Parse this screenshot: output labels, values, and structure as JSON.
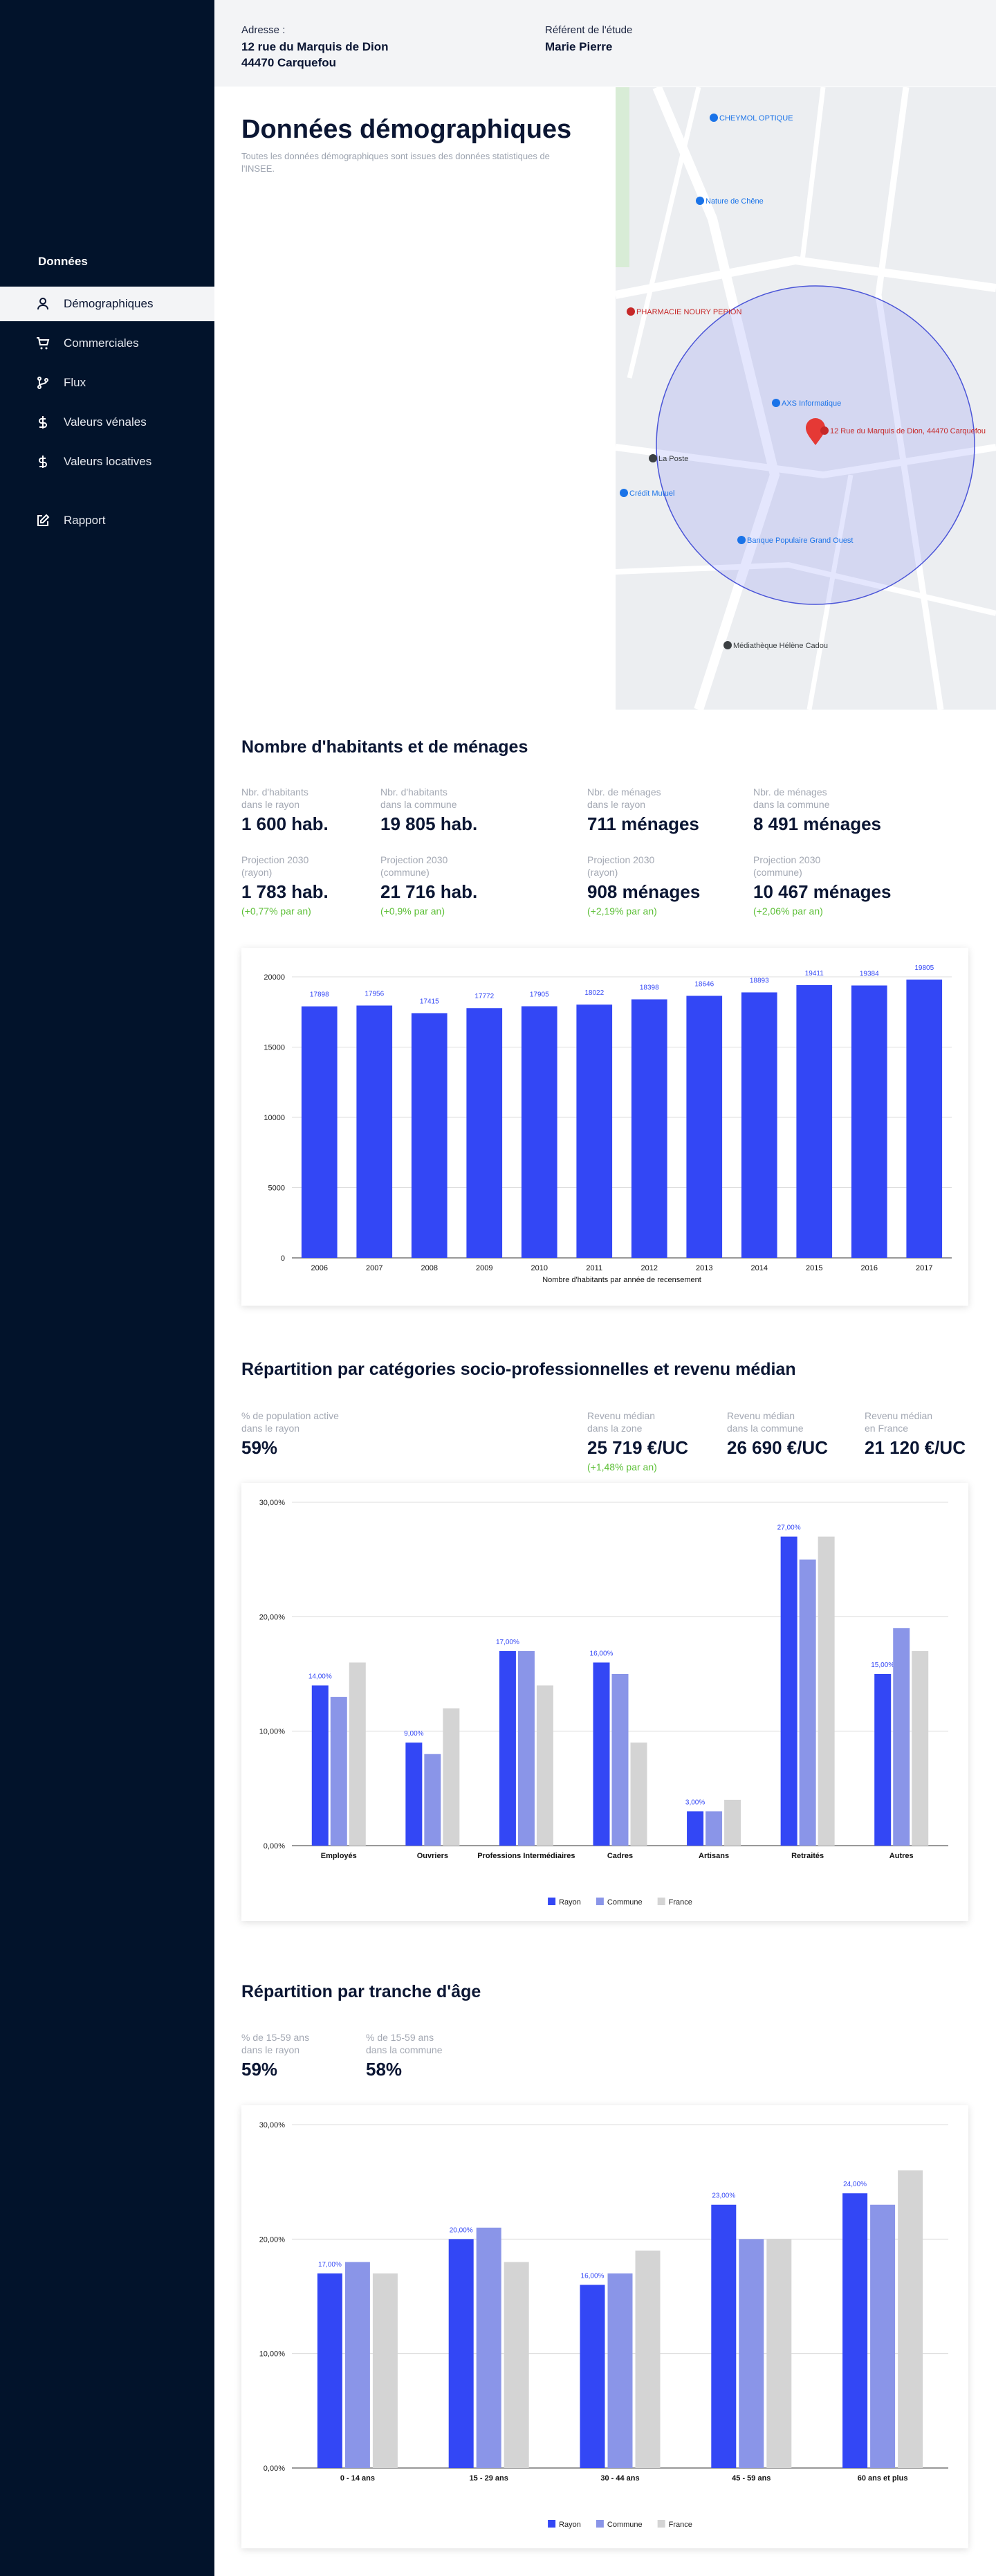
{
  "sidebar": {
    "heading": "Données",
    "items": [
      "Démographiques",
      "Commerciales",
      "Flux",
      "Valeurs vénales",
      "Valeurs locatives",
      "Rapport"
    ]
  },
  "header": {
    "address_label": "Adresse :",
    "address_lines": [
      "12 rue du Marquis de Dion",
      "44470 Carquefou"
    ],
    "referent_label": "Référent de l'étude",
    "referent": "Marie Pierre"
  },
  "page": {
    "title": "Données démographiques",
    "subtitle": "Toutes les données démographiques sont issues des données statistiques de l'INSEE."
  },
  "map": {
    "labels": [
      "CHEYMOL OPTIQUE",
      "Nature de Chêne",
      "PHARMACIE NOURY PEPION",
      "AXS Informatique",
      "12 Rue du Marquis de Dion, 44470 Carquefou",
      "La Poste",
      "Crédit Mutuel",
      "Banque Populaire Grand Ouest",
      "Médiathèque Hélène Cadou"
    ]
  },
  "sections": [
    {
      "title": "Nombre d'habitants et de ménages",
      "stats": [
        {
          "label_lines": [
            "Nbr. d'habitants",
            "dans le rayon"
          ],
          "value": "1 600 hab."
        },
        {
          "label_lines": [
            "Nbr. d'habitants",
            "dans la commune"
          ],
          "value": "19 805 hab."
        },
        {
          "label_lines": [
            "Nbr. de ménages",
            "dans le rayon"
          ],
          "value": "711 ménages"
        },
        {
          "label_lines": [
            "Nbr. de ménages",
            "dans la commune"
          ],
          "value": "8 491 ménages"
        },
        {
          "label_lines": [
            "Projection 2030",
            "(rayon)"
          ],
          "value": "1 783 hab.",
          "growth": "(+0,77% par an)"
        },
        {
          "label_lines": [
            "Projection 2030",
            "(commune)"
          ],
          "value": "21 716 hab.",
          "growth": "(+0,9% par an)"
        },
        {
          "label_lines": [
            "Projection 2030",
            "(rayon)"
          ],
          "value": "908 ménages",
          "growth": "(+2,19% par an)"
        },
        {
          "label_lines": [
            "Projection 2030",
            "(commune)"
          ],
          "value": "10 467 ménages",
          "growth": "(+2,06% par an)"
        }
      ]
    },
    {
      "title": "Répartition par catégories socio-professionnelles et revenu médian",
      "stats": [
        {
          "label_lines": [
            "% de population active",
            "dans le rayon"
          ],
          "value": "59%"
        },
        {
          "label_lines": [
            "Revenu médian",
            "dans la zone"
          ],
          "value": "25 719 €/UC",
          "growth": "(+1,48% par an)"
        },
        {
          "label_lines": [
            "Revenu médian",
            "dans la commune"
          ],
          "value": "26 690 €/UC"
        },
        {
          "label_lines": [
            "Revenu médian",
            "en France"
          ],
          "value": "21 120 €/UC"
        }
      ]
    },
    {
      "title": "Répartition par tranche d'âge",
      "stats": [
        {
          "label_lines": [
            "% de 15-59 ans",
            "dans le rayon"
          ],
          "value": "59%"
        },
        {
          "label_lines": [
            "% de 15-59 ans",
            "dans la commune"
          ],
          "value": "58%"
        }
      ]
    }
  ],
  "chart_data": [
    {
      "type": "bar",
      "x_label": "Nombre d'habitants par année de recensement",
      "categories": [
        "2006",
        "2007",
        "2008",
        "2009",
        "2010",
        "2011",
        "2012",
        "2013",
        "2014",
        "2015",
        "2016",
        "2017"
      ],
      "values": [
        17898,
        17956,
        17415,
        17772,
        17905,
        18022,
        18398,
        18646,
        18893,
        19411,
        19384,
        19805
      ],
      "color": "#3347f5",
      "ylim": [
        0,
        20000
      ],
      "yticks": [
        0,
        5000,
        10000,
        15000,
        20000
      ],
      "grid": true
    },
    {
      "type": "bar",
      "categories": [
        "Employés",
        "Ouvriers",
        "Professions Intermédiaires",
        "Cadres",
        "Artisans",
        "Retraités",
        "Autres"
      ],
      "series": [
        {
          "name": "Rayon",
          "color": "#3347f5",
          "values": [
            14,
            9,
            17,
            16,
            3,
            27,
            15
          ],
          "value_labels": [
            "14,00%",
            "9,00%",
            "17,00%",
            "16,00%",
            "3,00%",
            "27,00%",
            "15,00%"
          ]
        },
        {
          "name": "Commune",
          "color": "#8a95e8",
          "values": [
            13,
            8,
            17,
            15,
            3,
            25,
            19
          ]
        },
        {
          "name": "France",
          "color": "#d4d4d4",
          "values": [
            16,
            12,
            14,
            9,
            4,
            27,
            17
          ]
        }
      ],
      "ylim": [
        0,
        30
      ],
      "yticks": [
        {
          "value": 0,
          "label": "0,00%"
        },
        {
          "value": 10,
          "label": "10,00%"
        },
        {
          "value": 20,
          "label": "20,00%"
        },
        {
          "value": 30,
          "label": "30,00%"
        }
      ],
      "grid": true,
      "legend": "bottom"
    },
    {
      "type": "bar",
      "categories": [
        "0 - 14 ans",
        "15 - 29 ans",
        "30 - 44 ans",
        "45 - 59 ans",
        "60 ans et plus"
      ],
      "series": [
        {
          "name": "Rayon",
          "color": "#3347f5",
          "values": [
            17,
            20,
            16,
            23,
            24
          ],
          "value_labels": [
            "17,00%",
            "20,00%",
            "16,00%",
            "23,00%",
            "24,00%"
          ]
        },
        {
          "name": "Commune",
          "color": "#8a95e8",
          "values": [
            18,
            21,
            17,
            20,
            23
          ]
        },
        {
          "name": "France",
          "color": "#d4d4d4",
          "values": [
            17,
            18,
            19,
            20,
            26
          ]
        }
      ],
      "ylim": [
        0,
        30
      ],
      "yticks": [
        {
          "value": 0,
          "label": "0,00%"
        },
        {
          "value": 10,
          "label": "10,00%"
        },
        {
          "value": 20,
          "label": "20,00%"
        },
        {
          "value": 30,
          "label": "30,00%"
        }
      ],
      "grid": true,
      "legend": "bottom"
    }
  ]
}
